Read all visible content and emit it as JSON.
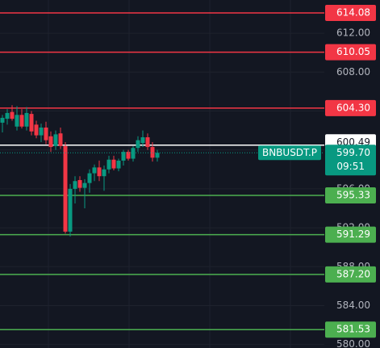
{
  "chart_data": {
    "type": "candlestick",
    "up_color": "#089981",
    "down_color": "#f23645",
    "open": [
      602.8,
      603.2,
      603.9,
      602.4,
      603.6,
      602.4,
      603.7,
      602.6,
      601.5,
      602.3,
      601.4,
      600.4,
      601.7,
      600.4,
      591.6,
      596.0,
      596.9,
      596.1,
      596.6,
      597.6,
      598.2,
      597.3,
      598.0,
      599.0,
      598.1,
      598.9,
      599.8,
      599.1,
      600.2,
      600.7,
      601.3,
      600.3,
      599.2
    ],
    "high": [
      603.6,
      604.2,
      604.6,
      604.5,
      604.2,
      604.4,
      604.0,
      603.0,
      602.7,
      602.9,
      601.9,
      602.0,
      602.3,
      600.8,
      596.5,
      597.3,
      597.3,
      597.0,
      598.0,
      598.5,
      598.9,
      598.4,
      599.4,
      599.4,
      599.1,
      600.0,
      600.0,
      600.4,
      601.4,
      602.0,
      601.7,
      600.8,
      600.0
    ],
    "low": [
      601.8,
      602.6,
      603.0,
      602.0,
      602.2,
      602.0,
      601.5,
      601.2,
      600.8,
      600.6,
      599.8,
      600.0,
      600.1,
      591.4,
      591.1,
      594.5,
      595.7,
      594.0,
      595.6,
      596.8,
      596.8,
      595.8,
      597.6,
      597.9,
      597.8,
      598.4,
      598.9,
      598.8,
      599.8,
      600.3,
      600.0,
      598.8,
      598.8
    ],
    "close": [
      603.3,
      603.8,
      603.2,
      603.6,
      602.4,
      603.8,
      601.9,
      601.5,
      602.3,
      601.0,
      600.3,
      601.6,
      600.4,
      591.6,
      596.0,
      596.8,
      596.1,
      596.6,
      597.6,
      598.2,
      597.3,
      598.0,
      599.0,
      598.1,
      598.9,
      599.8,
      599.1,
      600.2,
      601.0,
      601.3,
      600.3,
      599.2,
      599.7
    ],
    "ylim": [
      579.64,
      615.41
    ],
    "yticks": [
      {
        "value": 612,
        "label": "612.00"
      },
      {
        "value": 608,
        "label": "608.00"
      },
      {
        "value": 604,
        "label": "604.00"
      },
      {
        "value": 600,
        "label": "600.00"
      },
      {
        "value": 596,
        "label": "596.00"
      },
      {
        "value": 592,
        "label": "592.00"
      },
      {
        "value": 588,
        "label": "588.00"
      },
      {
        "value": 584,
        "label": "584.00"
      },
      {
        "value": 580,
        "label": "580.00"
      }
    ],
    "levels": {
      "values": [
        614.08,
        610.05,
        604.3,
        600.49,
        595.33,
        591.29,
        587.2,
        581.53
      ],
      "value_labels": [
        "614.08",
        "610.05",
        "604.30",
        "600.49",
        "595.33",
        "591.29",
        "587.20",
        "581.53"
      ],
      "colors": [
        "#f23645",
        "#f23645",
        "#f23645",
        "#ffffff",
        "#4caf50",
        "#4caf50",
        "#4caf50",
        "#4caf50"
      ]
    },
    "last": {
      "symbol": "BNBUSDT.P",
      "value": 599.7,
      "value_label": "599.70",
      "countdown": "09:51",
      "color": "#089981"
    }
  }
}
